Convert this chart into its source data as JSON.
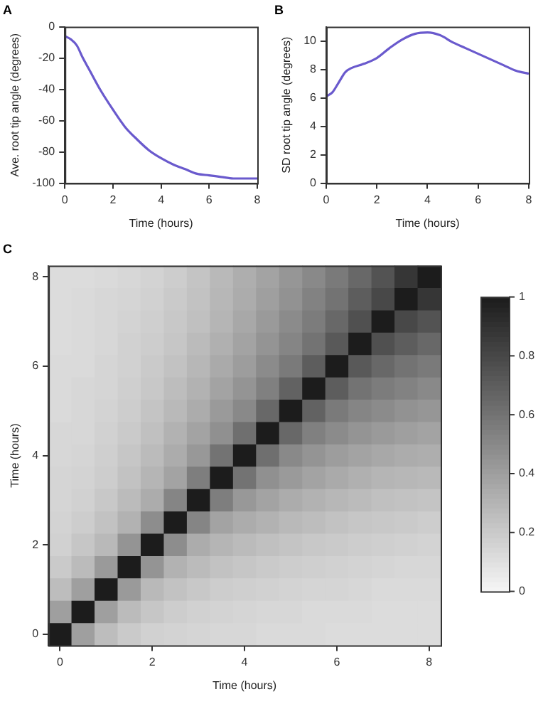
{
  "chart_data": [
    {
      "type": "line",
      "title": "A",
      "xlabel": "Time (hours)",
      "ylabel": "Ave. root tip angle (degrees)",
      "x": [
        0,
        0.25,
        0.5,
        0.75,
        1,
        1.5,
        2,
        2.5,
        3,
        3.5,
        4,
        4.5,
        5,
        5.5,
        6,
        6.5,
        7,
        7.5,
        8
      ],
      "series": [
        {
          "color": "#6a5acd",
          "values": [
            -6,
            -8,
            -12,
            -20,
            -27,
            -41,
            -53,
            -64,
            -72,
            -79,
            -84,
            -88,
            -91,
            -94,
            -95,
            -96,
            -97,
            -97,
            -97
          ]
        }
      ],
      "xlim": [
        0,
        8
      ],
      "xticks": [
        0,
        2,
        4,
        6,
        8
      ],
      "ylim": [
        -100,
        0
      ],
      "yticks": [
        -100,
        -80,
        -60,
        -40,
        -20,
        0
      ],
      "grid": false,
      "legend": false
    },
    {
      "type": "line",
      "title": "B",
      "xlabel": "Time (hours)",
      "ylabel": "SD root tip angle (degrees)",
      "x": [
        0,
        0.25,
        0.5,
        0.75,
        1,
        1.5,
        2,
        2.5,
        3,
        3.5,
        4,
        4.5,
        5,
        5.5,
        6,
        6.5,
        7,
        7.5,
        8
      ],
      "series": [
        {
          "color": "#6a5acd",
          "values": [
            6.1,
            6.4,
            7.1,
            7.8,
            8.1,
            8.4,
            8.8,
            9.5,
            10.1,
            10.5,
            10.6,
            10.4,
            9.9,
            9.5,
            9.1,
            8.7,
            8.3,
            7.9,
            7.7
          ]
        }
      ],
      "xlim": [
        0,
        8
      ],
      "xticks": [
        0,
        2,
        4,
        6,
        8
      ],
      "ylim": [
        0,
        11
      ],
      "yticks": [
        0,
        2,
        4,
        6,
        8,
        10
      ],
      "grid": false,
      "legend": false
    },
    {
      "type": "heatmap",
      "title": "C",
      "xlabel": "Time (hours)",
      "ylabel": "Time (hours)",
      "categories": [
        "0",
        null,
        null,
        null,
        "2",
        null,
        null,
        null,
        "4",
        null,
        null,
        null,
        "6",
        null,
        null,
        null,
        "8"
      ],
      "y_categories": [
        "8",
        null,
        null,
        null,
        "6",
        null,
        null,
        null,
        "4",
        null,
        null,
        null,
        "2",
        null,
        null,
        null,
        "0"
      ],
      "clim": [
        0,
        1
      ],
      "cticks": [
        0,
        0.2,
        0.4,
        0.6,
        0.8,
        1
      ],
      "cells": [
        [
          0.12,
          0.12,
          0.13,
          0.14,
          0.16,
          0.19,
          0.23,
          0.28,
          0.33,
          0.38,
          0.44,
          0.5,
          0.57,
          0.65,
          0.75,
          0.88,
          1
        ],
        [
          0.12,
          0.13,
          0.14,
          0.15,
          0.17,
          0.2,
          0.24,
          0.29,
          0.34,
          0.4,
          0.46,
          0.53,
          0.6,
          0.7,
          0.8,
          1,
          0.88
        ],
        [
          0.12,
          0.13,
          0.14,
          0.16,
          0.18,
          0.21,
          0.25,
          0.3,
          0.36,
          0.42,
          0.49,
          0.56,
          0.65,
          0.76,
          1,
          0.8,
          0.75
        ],
        [
          0.12,
          0.13,
          0.14,
          0.17,
          0.19,
          0.22,
          0.27,
          0.32,
          0.38,
          0.45,
          0.52,
          0.6,
          0.72,
          1,
          0.76,
          0.7,
          0.65
        ],
        [
          0.13,
          0.13,
          0.15,
          0.17,
          0.2,
          0.24,
          0.29,
          0.35,
          0.41,
          0.49,
          0.57,
          0.7,
          1,
          0.72,
          0.65,
          0.6,
          0.57
        ],
        [
          0.13,
          0.14,
          0.15,
          0.18,
          0.21,
          0.26,
          0.31,
          0.38,
          0.45,
          0.54,
          0.68,
          1,
          0.7,
          0.6,
          0.56,
          0.53,
          0.5
        ],
        [
          0.13,
          0.14,
          0.16,
          0.19,
          0.23,
          0.28,
          0.34,
          0.42,
          0.5,
          0.65,
          1,
          0.68,
          0.57,
          0.52,
          0.49,
          0.46,
          0.44
        ],
        [
          0.14,
          0.14,
          0.17,
          0.2,
          0.25,
          0.31,
          0.38,
          0.47,
          0.62,
          1,
          0.65,
          0.54,
          0.49,
          0.45,
          0.42,
          0.4,
          0.38
        ],
        [
          0.14,
          0.15,
          0.18,
          0.22,
          0.27,
          0.34,
          0.43,
          0.6,
          1,
          0.62,
          0.5,
          0.45,
          0.41,
          0.38,
          0.36,
          0.34,
          0.33
        ],
        [
          0.15,
          0.16,
          0.19,
          0.24,
          0.3,
          0.38,
          0.55,
          1,
          0.6,
          0.47,
          0.42,
          0.38,
          0.35,
          0.32,
          0.3,
          0.29,
          0.28
        ],
        [
          0.15,
          0.17,
          0.21,
          0.27,
          0.34,
          0.52,
          1,
          0.55,
          0.43,
          0.38,
          0.34,
          0.31,
          0.29,
          0.27,
          0.25,
          0.24,
          0.23
        ],
        [
          0.16,
          0.19,
          0.24,
          0.31,
          0.48,
          1,
          0.52,
          0.38,
          0.34,
          0.31,
          0.28,
          0.26,
          0.24,
          0.22,
          0.21,
          0.2,
          0.19
        ],
        [
          0.17,
          0.22,
          0.28,
          0.45,
          1,
          0.48,
          0.34,
          0.3,
          0.27,
          0.25,
          0.23,
          0.21,
          0.2,
          0.19,
          0.18,
          0.17,
          0.16
        ],
        [
          0.2,
          0.27,
          0.42,
          1,
          0.45,
          0.31,
          0.27,
          0.24,
          0.22,
          0.2,
          0.19,
          0.18,
          0.17,
          0.16,
          0.15,
          0.14,
          0.14
        ],
        [
          0.26,
          0.4,
          1,
          0.42,
          0.28,
          0.24,
          0.21,
          0.19,
          0.18,
          0.17,
          0.16,
          0.15,
          0.15,
          0.14,
          0.13,
          0.13,
          0.13
        ],
        [
          0.4,
          1,
          0.4,
          0.27,
          0.22,
          0.19,
          0.17,
          0.16,
          0.15,
          0.14,
          0.14,
          0.13,
          0.13,
          0.13,
          0.12,
          0.12,
          0.12
        ],
        [
          1,
          0.4,
          0.26,
          0.2,
          0.17,
          0.16,
          0.15,
          0.14,
          0.14,
          0.13,
          0.13,
          0.13,
          0.12,
          0.12,
          0.12,
          0.12,
          0.12
        ]
      ]
    }
  ]
}
